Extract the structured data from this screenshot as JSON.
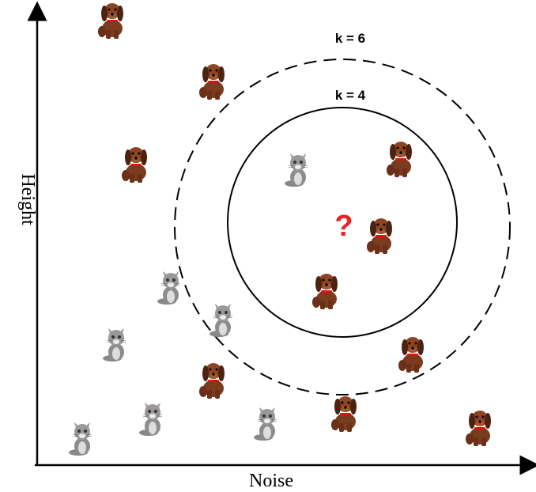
{
  "labels": {
    "k6": "k = 6",
    "k4": "k = 4",
    "query": "?",
    "y_axis": "Height",
    "x_axis": "Noise"
  }
}
